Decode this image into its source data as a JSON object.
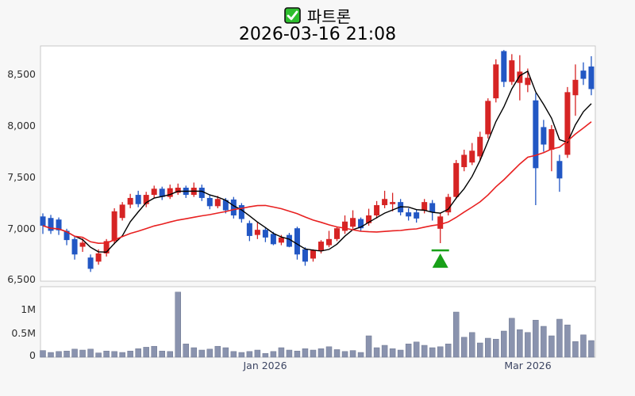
{
  "title": {
    "checkbox_icon": "green-checked-checkbox",
    "symbol": "파트론",
    "datetime": "2026-03-16 21:08"
  },
  "price_axis": {
    "ticks": [
      "8,500",
      "8,000",
      "7,500",
      "7,000",
      "6,500"
    ],
    "values": [
      8500,
      8000,
      7500,
      7000,
      6500
    ]
  },
  "volume_axis": {
    "ticks": [
      "1M",
      "0.5M",
      "0"
    ],
    "values_m": [
      1,
      0.5,
      0
    ]
  },
  "x_axis": {
    "ticks": [
      {
        "label": "Jan 2026",
        "candle_index": 28
      },
      {
        "label": "Mar 2026",
        "candle_index": 61
      }
    ]
  },
  "colors": {
    "up_candle": "#d62424",
    "down_candle": "#2257c4",
    "volume_bar": "#8a93ae",
    "ma_short": "#000000",
    "ma_long": "#e82020",
    "marker": "#18a018",
    "figure_bg": "#f7f7f7",
    "plot_bg": "#ffffff",
    "spine": "#c9c9c9"
  },
  "chart_data": {
    "type": "candlestick-with-volume",
    "title": "파트론 2026-03-16 21:08",
    "ylim": [
      6490,
      8780
    ],
    "volume_ylim_m": [
      0,
      1.47
    ],
    "grid": false,
    "ma_lines": [
      {
        "name": "short-ma",
        "window": 5,
        "color": "#000000"
      },
      {
        "name": "long-ma",
        "window": 20,
        "color": "#e82020"
      }
    ],
    "marker": {
      "type": "triangle-up-buy",
      "candle_index": 50,
      "line_price": 6790,
      "apex_price": 6760,
      "base_price": 6620,
      "color": "#18a018"
    },
    "ohlc": [
      [
        7120,
        7150,
        6950,
        7030
      ],
      [
        7105,
        7135,
        6950,
        6980
      ],
      [
        7090,
        7110,
        6940,
        6985
      ],
      [
        6980,
        7000,
        6840,
        6890
      ],
      [
        6900,
        6920,
        6700,
        6750
      ],
      [
        6825,
        6905,
        6775,
        6865
      ],
      [
        6720,
        6750,
        6580,
        6610
      ],
      [
        6680,
        6800,
        6650,
        6760
      ],
      [
        6760,
        6900,
        6730,
        6880
      ],
      [
        6880,
        7200,
        6850,
        7170
      ],
      [
        7105,
        7260,
        7080,
        7235
      ],
      [
        7235,
        7340,
        7200,
        7300
      ],
      [
        7330,
        7370,
        7210,
        7240
      ],
      [
        7240,
        7360,
        7210,
        7330
      ],
      [
        7330,
        7420,
        7300,
        7390
      ],
      [
        7390,
        7410,
        7280,
        7310
      ],
      [
        7310,
        7430,
        7290,
        7395
      ],
      [
        7350,
        7440,
        7330,
        7400
      ],
      [
        7400,
        7420,
        7300,
        7330
      ],
      [
        7330,
        7450,
        7310,
        7400
      ],
      [
        7400,
        7430,
        7270,
        7300
      ],
      [
        7300,
        7330,
        7190,
        7220
      ],
      [
        7220,
        7320,
        7200,
        7290
      ],
      [
        7280,
        7300,
        7150,
        7180
      ],
      [
        7285,
        7310,
        7100,
        7130
      ],
      [
        7230,
        7250,
        7060,
        7095
      ],
      [
        7055,
        7080,
        6880,
        6930
      ],
      [
        6940,
        7060,
        6900,
        6990
      ],
      [
        6990,
        7010,
        6870,
        6915
      ],
      [
        6950,
        6970,
        6840,
        6850
      ],
      [
        6865,
        6940,
        6840,
        6915
      ],
      [
        6940,
        6960,
        6820,
        6825
      ],
      [
        7005,
        7020,
        6700,
        6750
      ],
      [
        6800,
        6820,
        6640,
        6680
      ],
      [
        6710,
        6800,
        6680,
        6790
      ],
      [
        6790,
        6890,
        6760,
        6875
      ],
      [
        6840,
        6980,
        6820,
        6900
      ],
      [
        6900,
        7020,
        6880,
        7005
      ],
      [
        6980,
        7130,
        6950,
        7070
      ],
      [
        7020,
        7180,
        7000,
        7105
      ],
      [
        7095,
        7110,
        6980,
        7005
      ],
      [
        7055,
        7195,
        7030,
        7130
      ],
      [
        7130,
        7270,
        7100,
        7230
      ],
      [
        7230,
        7370,
        7200,
        7290
      ],
      [
        7240,
        7350,
        7170,
        7260
      ],
      [
        7260,
        7290,
        7130,
        7160
      ],
      [
        7160,
        7200,
        7080,
        7120
      ],
      [
        7160,
        7190,
        7060,
        7100
      ],
      [
        7180,
        7290,
        7150,
        7260
      ],
      [
        7250,
        7280,
        7080,
        7160
      ],
      [
        7000,
        7150,
        6860,
        7120
      ],
      [
        7160,
        7340,
        7130,
        7310
      ],
      [
        7310,
        7670,
        7290,
        7640
      ],
      [
        7600,
        7770,
        7560,
        7720
      ],
      [
        7645,
        7835,
        7620,
        7760
      ],
      [
        7705,
        7945,
        7665,
        7895
      ],
      [
        7920,
        8270,
        7880,
        8245
      ],
      [
        8270,
        8650,
        8230,
        8600
      ],
      [
        8730,
        8740,
        8380,
        8430
      ],
      [
        8430,
        8700,
        8400,
        8640
      ],
      [
        8420,
        8690,
        8250,
        8530
      ],
      [
        8400,
        8560,
        8330,
        8470
      ],
      [
        8250,
        8320,
        7230,
        7590
      ],
      [
        7990,
        8060,
        7750,
        7820
      ],
      [
        7770,
        8010,
        7560,
        7970
      ],
      [
        7660,
        7720,
        7360,
        7490
      ],
      [
        7720,
        8380,
        7690,
        8330
      ],
      [
        8300,
        8600,
        8100,
        8450
      ],
      [
        8540,
        8620,
        8400,
        8460
      ],
      [
        8580,
        8680,
        8300,
        8360
      ]
    ],
    "volumes_m": [
      0.14,
      0.1,
      0.12,
      0.13,
      0.17,
      0.15,
      0.17,
      0.09,
      0.13,
      0.12,
      0.1,
      0.13,
      0.18,
      0.21,
      0.23,
      0.13,
      0.12,
      1.37,
      0.28,
      0.2,
      0.15,
      0.17,
      0.23,
      0.2,
      0.12,
      0.1,
      0.12,
      0.15,
      0.08,
      0.12,
      0.2,
      0.15,
      0.13,
      0.18,
      0.15,
      0.18,
      0.22,
      0.16,
      0.12,
      0.14,
      0.1,
      0.45,
      0.2,
      0.25,
      0.18,
      0.15,
      0.28,
      0.32,
      0.25,
      0.2,
      0.22,
      0.28,
      0.95,
      0.42,
      0.52,
      0.3,
      0.4,
      0.38,
      0.55,
      0.82,
      0.58,
      0.52,
      0.78,
      0.65,
      0.45,
      0.8,
      0.68,
      0.33,
      0.47,
      0.35
    ]
  }
}
